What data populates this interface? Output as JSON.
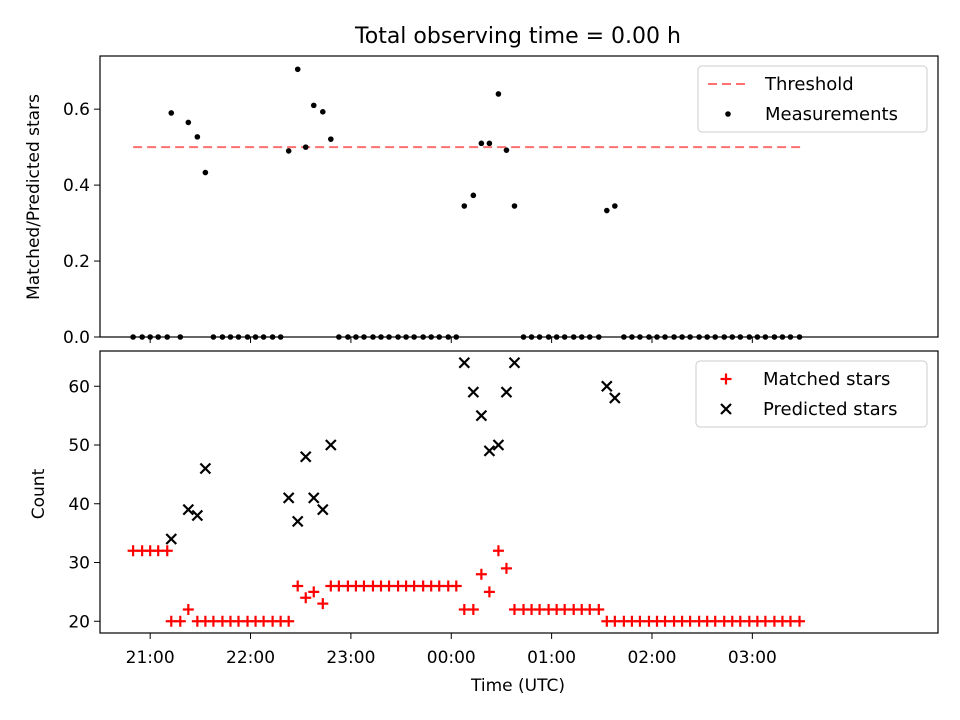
{
  "title": "Total observing time = 0.00 h",
  "colors": {
    "threshold": "#ff7070",
    "measurement": "#000000",
    "matched": "#ff0000",
    "predicted": "#000000"
  },
  "chart_data": [
    {
      "type": "scatter",
      "ylabel": "Matched/Predicted stars",
      "xlabel": "",
      "xlim": [
        20.5,
        28.85
      ],
      "ylim": [
        0,
        0.74
      ],
      "grid": false,
      "legend_position": "top-right",
      "x_ticks": [],
      "y_ticks": [
        {
          "value": 0.0,
          "label": "0.0"
        },
        {
          "value": 0.2,
          "label": "0.2"
        },
        {
          "value": 0.4,
          "label": "0.4"
        },
        {
          "value": 0.6,
          "label": "0.6"
        }
      ],
      "series": [
        {
          "name": "Threshold",
          "kind": "dashed-line",
          "x": [
            20.83,
            27.48
          ],
          "y": [
            0.5,
            0.5
          ]
        },
        {
          "name": "Measurements",
          "kind": "dot",
          "points": [
            [
              20.83,
              0
            ],
            [
              20.92,
              0
            ],
            [
              21.0,
              0
            ],
            [
              21.08,
              0
            ],
            [
              21.17,
              0
            ],
            [
              21.21,
              0.59
            ],
            [
              21.3,
              0
            ],
            [
              21.38,
              0.565
            ],
            [
              21.47,
              0.527
            ],
            [
              21.55,
              0.433
            ],
            [
              21.63,
              0
            ],
            [
              21.72,
              0
            ],
            [
              21.8,
              0
            ],
            [
              21.88,
              0
            ],
            [
              21.97,
              0
            ],
            [
              22.05,
              0
            ],
            [
              22.13,
              0
            ],
            [
              22.22,
              0
            ],
            [
              22.3,
              0
            ],
            [
              22.38,
              0.49
            ],
            [
              22.47,
              0.705
            ],
            [
              22.55,
              0.5
            ],
            [
              22.63,
              0.61
            ],
            [
              22.72,
              0.593
            ],
            [
              22.8,
              0.521
            ],
            [
              22.88,
              0
            ],
            [
              22.97,
              0
            ],
            [
              23.05,
              0
            ],
            [
              23.13,
              0
            ],
            [
              23.22,
              0
            ],
            [
              23.3,
              0
            ],
            [
              23.38,
              0
            ],
            [
              23.47,
              0
            ],
            [
              23.55,
              0
            ],
            [
              23.63,
              0
            ],
            [
              23.72,
              0
            ],
            [
              23.8,
              0
            ],
            [
              23.88,
              0
            ],
            [
              23.97,
              0
            ],
            [
              24.05,
              0
            ],
            [
              24.13,
              0.345
            ],
            [
              24.22,
              0.373
            ],
            [
              24.3,
              0.51
            ],
            [
              24.38,
              0.51
            ],
            [
              24.47,
              0.64
            ],
            [
              24.55,
              0.492
            ],
            [
              24.63,
              0.345
            ],
            [
              24.72,
              0
            ],
            [
              24.8,
              0
            ],
            [
              24.88,
              0
            ],
            [
              24.97,
              0
            ],
            [
              25.05,
              0
            ],
            [
              25.13,
              0
            ],
            [
              25.22,
              0
            ],
            [
              25.3,
              0
            ],
            [
              25.38,
              0
            ],
            [
              25.47,
              0
            ],
            [
              25.55,
              0.333
            ],
            [
              25.63,
              0.345
            ],
            [
              25.72,
              0
            ],
            [
              25.8,
              0
            ],
            [
              25.88,
              0
            ],
            [
              25.97,
              0
            ],
            [
              26.05,
              0
            ],
            [
              26.13,
              0
            ],
            [
              26.22,
              0
            ],
            [
              26.3,
              0
            ],
            [
              26.38,
              0
            ],
            [
              26.47,
              0
            ],
            [
              26.55,
              0
            ],
            [
              26.63,
              0
            ],
            [
              26.72,
              0
            ],
            [
              26.8,
              0
            ],
            [
              26.88,
              0
            ],
            [
              26.97,
              0
            ],
            [
              27.05,
              0
            ],
            [
              27.13,
              0
            ],
            [
              27.22,
              0
            ],
            [
              27.3,
              0
            ],
            [
              27.38,
              0
            ],
            [
              27.47,
              0
            ]
          ]
        }
      ]
    },
    {
      "type": "scatter",
      "ylabel": "Count",
      "xlabel": "Time (UTC)",
      "xlim": [
        20.5,
        28.85
      ],
      "ylim": [
        18,
        66
      ],
      "grid": false,
      "legend_position": "top-right",
      "x_ticks": [
        {
          "value": 21,
          "label": "21:00"
        },
        {
          "value": 22,
          "label": "22:00"
        },
        {
          "value": 23,
          "label": "23:00"
        },
        {
          "value": 24,
          "label": "00:00"
        },
        {
          "value": 25,
          "label": "01:00"
        },
        {
          "value": 26,
          "label": "02:00"
        },
        {
          "value": 27,
          "label": "03:00"
        }
      ],
      "y_ticks": [
        {
          "value": 20,
          "label": "20"
        },
        {
          "value": 30,
          "label": "30"
        },
        {
          "value": 40,
          "label": "40"
        },
        {
          "value": 50,
          "label": "50"
        },
        {
          "value": 60,
          "label": "60"
        }
      ],
      "series": [
        {
          "name": "Matched stars",
          "kind": "plus",
          "points": [
            [
              20.83,
              32
            ],
            [
              20.92,
              32
            ],
            [
              21.0,
              32
            ],
            [
              21.08,
              32
            ],
            [
              21.17,
              32
            ],
            [
              21.21,
              20
            ],
            [
              21.3,
              20
            ],
            [
              21.38,
              22
            ],
            [
              21.47,
              20
            ],
            [
              21.55,
              20
            ],
            [
              21.63,
              20
            ],
            [
              21.72,
              20
            ],
            [
              21.8,
              20
            ],
            [
              21.88,
              20
            ],
            [
              21.97,
              20
            ],
            [
              22.05,
              20
            ],
            [
              22.13,
              20
            ],
            [
              22.22,
              20
            ],
            [
              22.3,
              20
            ],
            [
              22.38,
              20
            ],
            [
              22.47,
              26
            ],
            [
              22.55,
              24
            ],
            [
              22.63,
              25
            ],
            [
              22.72,
              23
            ],
            [
              22.8,
              26
            ],
            [
              22.88,
              26
            ],
            [
              22.97,
              26
            ],
            [
              23.05,
              26
            ],
            [
              23.13,
              26
            ],
            [
              23.22,
              26
            ],
            [
              23.3,
              26
            ],
            [
              23.38,
              26
            ],
            [
              23.47,
              26
            ],
            [
              23.55,
              26
            ],
            [
              23.63,
              26
            ],
            [
              23.72,
              26
            ],
            [
              23.8,
              26
            ],
            [
              23.88,
              26
            ],
            [
              23.97,
              26
            ],
            [
              24.05,
              26
            ],
            [
              24.13,
              22
            ],
            [
              24.22,
              22
            ],
            [
              24.3,
              28
            ],
            [
              24.38,
              25
            ],
            [
              24.47,
              32
            ],
            [
              24.55,
              29
            ],
            [
              24.63,
              22
            ],
            [
              24.72,
              22
            ],
            [
              24.8,
              22
            ],
            [
              24.88,
              22
            ],
            [
              24.97,
              22
            ],
            [
              25.05,
              22
            ],
            [
              25.13,
              22
            ],
            [
              25.22,
              22
            ],
            [
              25.3,
              22
            ],
            [
              25.38,
              22
            ],
            [
              25.47,
              22
            ],
            [
              25.55,
              20
            ],
            [
              25.63,
              20
            ],
            [
              25.72,
              20
            ],
            [
              25.8,
              20
            ],
            [
              25.88,
              20
            ],
            [
              25.97,
              20
            ],
            [
              26.05,
              20
            ],
            [
              26.13,
              20
            ],
            [
              26.22,
              20
            ],
            [
              26.3,
              20
            ],
            [
              26.38,
              20
            ],
            [
              26.47,
              20
            ],
            [
              26.55,
              20
            ],
            [
              26.63,
              20
            ],
            [
              26.72,
              20
            ],
            [
              26.8,
              20
            ],
            [
              26.88,
              20
            ],
            [
              26.97,
              20
            ],
            [
              27.05,
              20
            ],
            [
              27.13,
              20
            ],
            [
              27.22,
              20
            ],
            [
              27.3,
              20
            ],
            [
              27.38,
              20
            ],
            [
              27.47,
              20
            ]
          ]
        },
        {
          "name": "Predicted stars",
          "kind": "cross",
          "points": [
            [
              21.21,
              34
            ],
            [
              21.38,
              39
            ],
            [
              21.47,
              38
            ],
            [
              21.55,
              46
            ],
            [
              22.38,
              41
            ],
            [
              22.47,
              37
            ],
            [
              22.55,
              48
            ],
            [
              22.63,
              41
            ],
            [
              22.72,
              39
            ],
            [
              22.8,
              50
            ],
            [
              24.13,
              64
            ],
            [
              24.22,
              59
            ],
            [
              24.3,
              55
            ],
            [
              24.38,
              49
            ],
            [
              24.47,
              50
            ],
            [
              24.55,
              59
            ],
            [
              24.63,
              64
            ],
            [
              25.55,
              60
            ],
            [
              25.63,
              58
            ]
          ]
        }
      ]
    }
  ]
}
